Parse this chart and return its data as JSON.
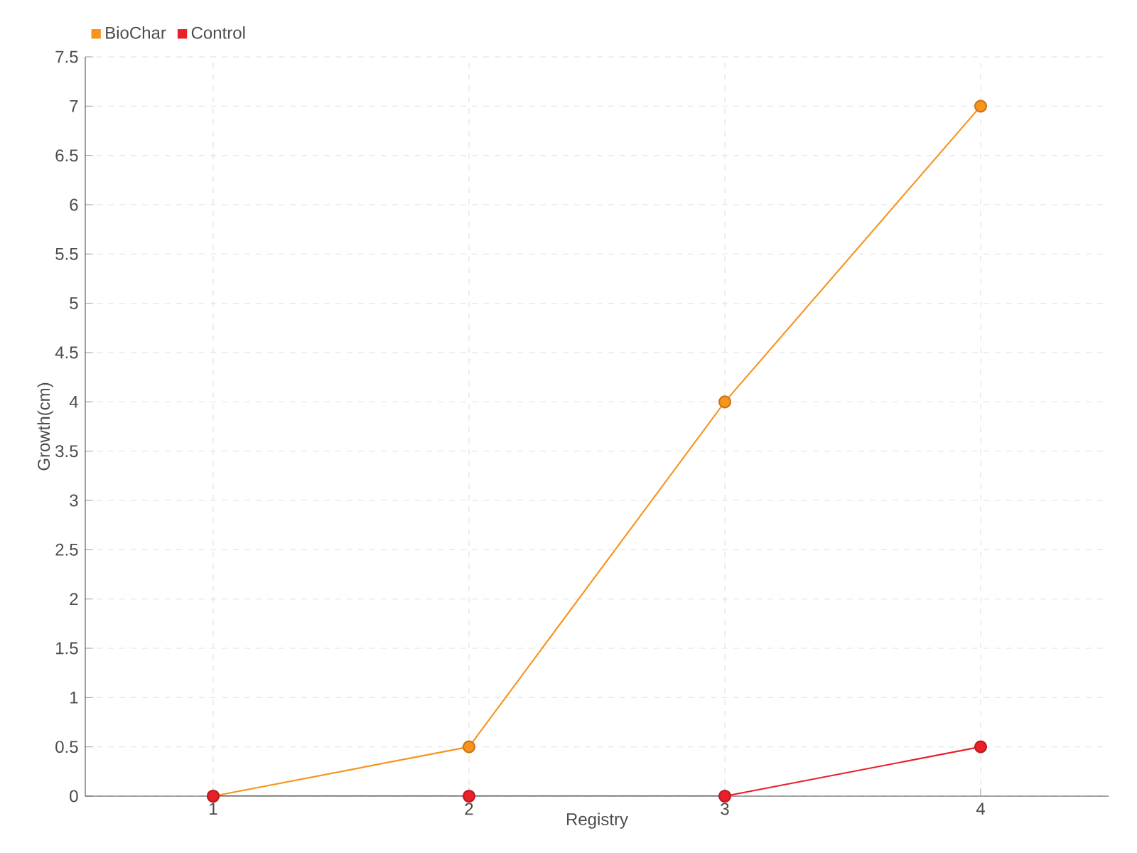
{
  "chart_data": {
    "type": "line",
    "xlabel": "Registry",
    "ylabel": "Growth(cm)",
    "categories": [
      "1",
      "2",
      "3",
      "4"
    ],
    "series": [
      {
        "name": "BioChar",
        "color": "#f7941d",
        "values": [
          0,
          0.5,
          4,
          7
        ]
      },
      {
        "name": "Control",
        "color": "#e8202a",
        "values": [
          0,
          0,
          0,
          0.5
        ]
      }
    ],
    "ylim": [
      0,
      7.5
    ],
    "yticks": [
      0,
      0.5,
      1,
      1.5,
      2,
      2.5,
      3,
      3.5,
      4,
      4.5,
      5,
      5.5,
      6,
      6.5,
      7,
      7.5
    ],
    "grid": true,
    "legend": "top left",
    "marker": "circle",
    "line_style": "solid"
  }
}
